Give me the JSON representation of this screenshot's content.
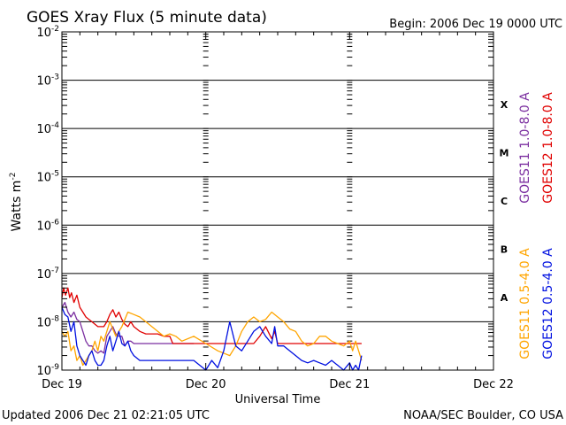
{
  "header": {
    "title": "GOES Xray Flux (5 minute data)",
    "begin": "Begin:  2006 Dec 19 0000 UTC"
  },
  "footer": {
    "updated": "Updated 2006 Dec 21 02:21:05 UTC",
    "credit": "NOAA/SEC Boulder, CO USA"
  },
  "chart_data": {
    "type": "line",
    "title": "GOES Xray Flux (5 minute data)",
    "xlabel": "Universal Time",
    "ylabel": "Watts m",
    "ylabel_sup": "-2",
    "yscale": "log",
    "ylim": [
      1e-09,
      0.01
    ],
    "xlim": [
      0,
      72
    ],
    "grid": true,
    "y_ticks": [
      {
        "exp": -2,
        "base": "10",
        "sup": "-2"
      },
      {
        "exp": -3,
        "base": "10",
        "sup": "-3"
      },
      {
        "exp": -4,
        "base": "10",
        "sup": "-4"
      },
      {
        "exp": -5,
        "base": "10",
        "sup": "-5"
      },
      {
        "exp": -6,
        "base": "10",
        "sup": "-6"
      },
      {
        "exp": -7,
        "base": "10",
        "sup": "-7"
      },
      {
        "exp": -8,
        "base": "10",
        "sup": "-8"
      },
      {
        "exp": -9,
        "base": "10",
        "sup": "-9"
      }
    ],
    "x_ticks": [
      {
        "h": 0,
        "label": "Dec 19"
      },
      {
        "h": 24,
        "label": "Dec 20"
      },
      {
        "h": 48,
        "label": "Dec 21"
      },
      {
        "h": 72,
        "label": "Dec 22"
      }
    ],
    "flare_classes": [
      {
        "label": "X",
        "exp": -3.5
      },
      {
        "label": "M",
        "exp": -4.5
      },
      {
        "label": "C",
        "exp": -5.5
      },
      {
        "label": "B",
        "exp": -6.5
      },
      {
        "label": "A",
        "exp": -7.5
      }
    ],
    "legend_placement": "right",
    "series": [
      {
        "name": "GOES11 1.0-8.0 A",
        "color": "#7b2fa0",
        "x": [
          0,
          0.5,
          1,
          1.5,
          2,
          2.5,
          3,
          3.5,
          4,
          4.5,
          5,
          5.5,
          6,
          6.5,
          7,
          7.5,
          8,
          8.5,
          9,
          9.5,
          10,
          10.5,
          11,
          11.5,
          12,
          13,
          14,
          15,
          16,
          17,
          18,
          19,
          20,
          22
        ],
        "y": [
          -7.7,
          -7.6,
          -7.8,
          -7.9,
          -7.8,
          -7.95,
          -8.0,
          -8.2,
          -8.4,
          -8.5,
          -8.5,
          -8.6,
          -8.65,
          -8.6,
          -8.65,
          -8.3,
          -8.2,
          -8.1,
          -8.25,
          -8.3,
          -8.3,
          -8.5,
          -8.4,
          -8.4,
          -8.45,
          -8.45,
          -8.45,
          -8.45,
          -8.45,
          -8.45,
          -8.45,
          -8.45,
          -8.45,
          -8.45
        ]
      },
      {
        "name": "GOES12 1.0-8.0 A",
        "color": "#e00000",
        "x": [
          0,
          0.3,
          0.6,
          1,
          1.3,
          1.6,
          2,
          2.5,
          3,
          3.5,
          4,
          4.5,
          5,
          6,
          7,
          7.5,
          8,
          8.5,
          9,
          9.5,
          10,
          10.5,
          11,
          11.5,
          12,
          13,
          14,
          15,
          16,
          17,
          18,
          18.5,
          19,
          20,
          22,
          24,
          26,
          28,
          30,
          32,
          33,
          34,
          35,
          35.5,
          36,
          36.5,
          37,
          38,
          40,
          42,
          44,
          46,
          48,
          50
        ],
        "y": [
          -7.5,
          -7.3,
          -7.45,
          -7.3,
          -7.5,
          -7.4,
          -7.6,
          -7.45,
          -7.7,
          -7.8,
          -7.9,
          -7.95,
          -8.0,
          -8.1,
          -8.1,
          -8.0,
          -7.85,
          -7.75,
          -7.9,
          -7.8,
          -7.95,
          -8.05,
          -8.1,
          -8.0,
          -8.1,
          -8.2,
          -8.25,
          -8.25,
          -8.25,
          -8.3,
          -8.3,
          -8.45,
          -8.45,
          -8.45,
          -8.45,
          -8.45,
          -8.45,
          -8.45,
          -8.45,
          -8.45,
          -8.3,
          -8.1,
          -8.35,
          -8.2,
          -8.45,
          -8.45,
          -8.45,
          -8.45,
          -8.45,
          -8.45,
          -8.45,
          -8.45,
          -8.45,
          -8.45
        ]
      },
      {
        "name": "GOES11 0.5-4.0 A",
        "color": "#ffa500",
        "x": [
          0,
          0.5,
          1,
          1.5,
          2,
          2.5,
          3,
          3.5,
          4,
          4.5,
          5,
          5.5,
          6,
          6.5,
          7,
          7.5,
          8,
          9,
          10,
          11,
          12,
          13,
          14,
          15,
          16,
          17,
          18,
          19,
          20,
          22,
          24,
          26,
          28,
          29,
          30,
          31,
          32,
          33,
          34,
          35,
          36,
          37,
          38,
          39,
          40,
          41,
          42,
          43,
          44,
          45,
          46,
          47,
          48,
          48.5,
          49,
          50
        ],
        "y": [
          -8.2,
          -8.3,
          -8.2,
          -8.6,
          -8.5,
          -8.8,
          -8.7,
          -8.9,
          -8.8,
          -8.7,
          -8.6,
          -8.4,
          -8.6,
          -8.3,
          -8.4,
          -8.2,
          -8.0,
          -8.3,
          -8.1,
          -7.8,
          -7.85,
          -7.9,
          -8.0,
          -8.1,
          -8.2,
          -8.3,
          -8.25,
          -8.3,
          -8.4,
          -8.3,
          -8.45,
          -8.6,
          -8.7,
          -8.5,
          -8.2,
          -8.0,
          -7.9,
          -8.0,
          -7.95,
          -7.8,
          -7.9,
          -8.0,
          -8.15,
          -8.2,
          -8.4,
          -8.5,
          -8.45,
          -8.3,
          -8.3,
          -8.4,
          -8.45,
          -8.5,
          -8.4,
          -8.6,
          -8.4,
          -8.8
        ]
      },
      {
        "name": "GOES12 0.5-4.0 A",
        "color": "#0010e0",
        "x": [
          0,
          0.5,
          1,
          1.5,
          2,
          2.5,
          3,
          3.5,
          4,
          4.5,
          5,
          5.5,
          6,
          6.5,
          7,
          7.5,
          8,
          8.5,
          9,
          9.5,
          10,
          10.5,
          11,
          11.5,
          12,
          13,
          14,
          16,
          18,
          20,
          22,
          24,
          25,
          26,
          27,
          28,
          29,
          30,
          31,
          32,
          33,
          34,
          35,
          35.5,
          36,
          37,
          38,
          39,
          40,
          41,
          42,
          43,
          44,
          45,
          46,
          47,
          48,
          48.5,
          49,
          49.5,
          50
        ],
        "y": [
          -7.7,
          -7.85,
          -7.9,
          -8.2,
          -8.0,
          -8.5,
          -8.7,
          -8.8,
          -8.9,
          -8.7,
          -8.6,
          -8.8,
          -8.9,
          -8.9,
          -8.8,
          -8.5,
          -8.3,
          -8.6,
          -8.4,
          -8.2,
          -8.45,
          -8.5,
          -8.4,
          -8.6,
          -8.7,
          -8.8,
          -8.8,
          -8.8,
          -8.8,
          -8.8,
          -8.8,
          -9.0,
          -8.8,
          -8.95,
          -8.6,
          -8.0,
          -8.5,
          -8.6,
          -8.4,
          -8.2,
          -8.1,
          -8.3,
          -8.45,
          -8.1,
          -8.5,
          -8.5,
          -8.6,
          -8.7,
          -8.8,
          -8.85,
          -8.8,
          -8.85,
          -8.9,
          -8.8,
          -8.9,
          -9.0,
          -8.85,
          -9.0,
          -8.9,
          -9.0,
          -8.7
        ]
      }
    ]
  }
}
